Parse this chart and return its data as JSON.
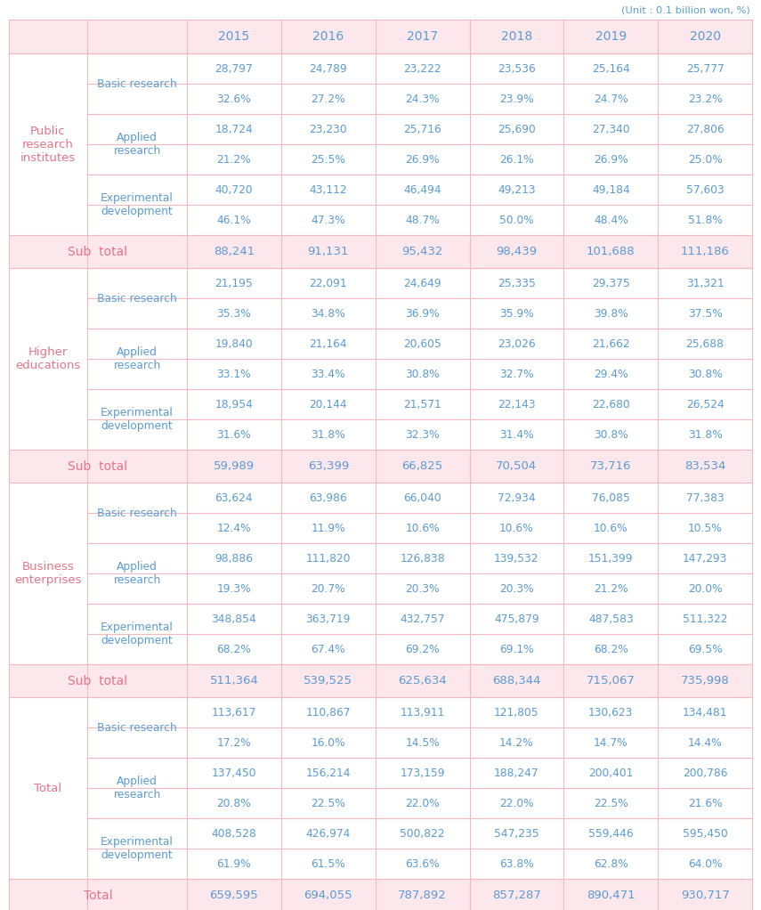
{
  "unit_text": "(Unit : 0.1 billion won, %)",
  "years": [
    "2015",
    "2016",
    "2017",
    "2018",
    "2019",
    "2020"
  ],
  "pink": "#e8738a",
  "blue": "#5b9bd5",
  "light_pink_bg": "#fce8ec",
  "line_color": "#f0b8c0",
  "sections": [
    {
      "sector_label": "Public\nresearch\ninstitutes",
      "rows": [
        {
          "type_label": "Basic research",
          "values": [
            "28,797",
            "24,789",
            "23,222",
            "23,536",
            "25,164",
            "25,777"
          ],
          "pcts": [
            "32.6%",
            "27.2%",
            "24.3%",
            "23.9%",
            "24.7%",
            "23.2%"
          ]
        },
        {
          "type_label": "Applied\nresearch",
          "values": [
            "18,724",
            "23,230",
            "25,716",
            "25,690",
            "27,340",
            "27,806"
          ],
          "pcts": [
            "21.2%",
            "25.5%",
            "26.9%",
            "26.1%",
            "26.9%",
            "25.0%"
          ]
        },
        {
          "type_label": "Experimental\ndevelopment",
          "values": [
            "40,720",
            "43,112",
            "46,494",
            "49,213",
            "49,184",
            "57,603"
          ],
          "pcts": [
            "46.1%",
            "47.3%",
            "48.7%",
            "50.0%",
            "48.4%",
            "51.8%"
          ]
        }
      ],
      "subtotal": [
        "88,241",
        "91,131",
        "95,432",
        "98,439",
        "101,688",
        "111,186"
      ],
      "sublabel": "Sub  total"
    },
    {
      "sector_label": "Higher\neducations",
      "rows": [
        {
          "type_label": "Basic research",
          "values": [
            "21,195",
            "22,091",
            "24,649",
            "25,335",
            "29,375",
            "31,321"
          ],
          "pcts": [
            "35.3%",
            "34.8%",
            "36.9%",
            "35.9%",
            "39.8%",
            "37.5%"
          ]
        },
        {
          "type_label": "Applied\nresearch",
          "values": [
            "19,840",
            "21,164",
            "20,605",
            "23,026",
            "21,662",
            "25,688"
          ],
          "pcts": [
            "33.1%",
            "33.4%",
            "30.8%",
            "32.7%",
            "29.4%",
            "30.8%"
          ]
        },
        {
          "type_label": "Experimental\ndevelopment",
          "values": [
            "18,954",
            "20,144",
            "21,571",
            "22,143",
            "22,680",
            "26,524"
          ],
          "pcts": [
            "31.6%",
            "31.8%",
            "32.3%",
            "31.4%",
            "30.8%",
            "31.8%"
          ]
        }
      ],
      "subtotal": [
        "59,989",
        "63,399",
        "66,825",
        "70,504",
        "73,716",
        "83,534"
      ],
      "sublabel": "Sub  total"
    },
    {
      "sector_label": "Business\nenterprises",
      "rows": [
        {
          "type_label": "Basic research",
          "values": [
            "63,624",
            "63,986",
            "66,040",
            "72,934",
            "76,085",
            "77,383"
          ],
          "pcts": [
            "12.4%",
            "11.9%",
            "10.6%",
            "10.6%",
            "10.6%",
            "10.5%"
          ]
        },
        {
          "type_label": "Applied\nresearch",
          "values": [
            "98,886",
            "111,820",
            "126,838",
            "139,532",
            "151,399",
            "147,293"
          ],
          "pcts": [
            "19.3%",
            "20.7%",
            "20.3%",
            "20.3%",
            "21.2%",
            "20.0%"
          ]
        },
        {
          "type_label": "Experimental\ndevelopment",
          "values": [
            "348,854",
            "363,719",
            "432,757",
            "475,879",
            "487,583",
            "511,322"
          ],
          "pcts": [
            "68.2%",
            "67.4%",
            "69.2%",
            "69.1%",
            "68.2%",
            "69.5%"
          ]
        }
      ],
      "subtotal": [
        "511,364",
        "539,525",
        "625,634",
        "688,344",
        "715,067",
        "735,998"
      ],
      "sublabel": "Sub  total"
    },
    {
      "sector_label": "Total",
      "rows": [
        {
          "type_label": "Basic research",
          "values": [
            "113,617",
            "110,867",
            "113,911",
            "121,805",
            "130,623",
            "134,481"
          ],
          "pcts": [
            "17.2%",
            "16.0%",
            "14.5%",
            "14.2%",
            "14.7%",
            "14.4%"
          ]
        },
        {
          "type_label": "Applied\nresearch",
          "values": [
            "137,450",
            "156,214",
            "173,159",
            "188,247",
            "200,401",
            "200,786"
          ],
          "pcts": [
            "20.8%",
            "22.5%",
            "22.0%",
            "22.0%",
            "22.5%",
            "21.6%"
          ]
        },
        {
          "type_label": "Experimental\ndevelopment",
          "values": [
            "408,528",
            "426,974",
            "500,822",
            "547,235",
            "559,446",
            "595,450"
          ],
          "pcts": [
            "61.9%",
            "61.5%",
            "63.6%",
            "63.8%",
            "62.8%",
            "64.0%"
          ]
        }
      ],
      "subtotal": [
        "659,595",
        "694,055",
        "787,892",
        "857,287",
        "890,471",
        "930,717"
      ],
      "sublabel": "Total"
    }
  ]
}
